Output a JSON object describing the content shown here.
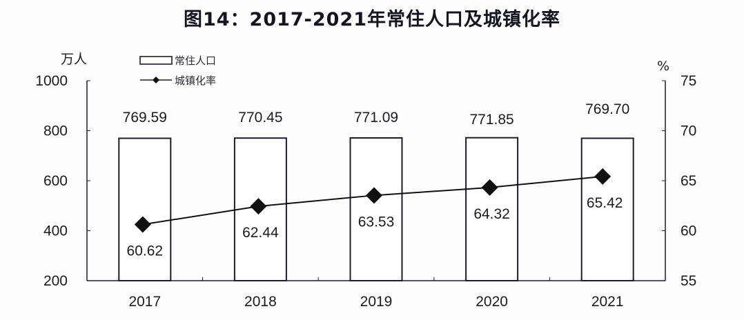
{
  "chart_data": {
    "type": "bar+line",
    "title": "图14：2017-2021年常住人口及城镇化率",
    "categories": [
      "2017",
      "2018",
      "2019",
      "2020",
      "2021"
    ],
    "series": [
      {
        "name": "常住人口",
        "type": "bar",
        "axis": "left",
        "unit": "万人",
        "values": [
          769.59,
          770.45,
          771.09,
          771.85,
          769.7
        ],
        "labels": [
          "769.59",
          "770.45",
          "771.09",
          "771.85",
          "769.70"
        ]
      },
      {
        "name": "城镇化率",
        "type": "line",
        "axis": "right",
        "unit": "%",
        "marker": "diamond",
        "values": [
          60.62,
          62.44,
          63.53,
          64.32,
          65.42
        ],
        "labels": [
          "60.62",
          "62.44",
          "63.53",
          "64.32",
          "65.42"
        ]
      }
    ],
    "y_left": {
      "label": "万人",
      "ylim": [
        200,
        1000
      ],
      "ticks": [
        "1000",
        "800",
        "600",
        "400",
        "200"
      ]
    },
    "y_right": {
      "label": "%",
      "ylim": [
        55,
        75
      ],
      "ticks": [
        "75",
        "70",
        "65",
        "60",
        "55"
      ]
    },
    "grid": false,
    "legend": {
      "position": "top-left",
      "entries": [
        "常住人口",
        "城镇化率"
      ]
    }
  }
}
